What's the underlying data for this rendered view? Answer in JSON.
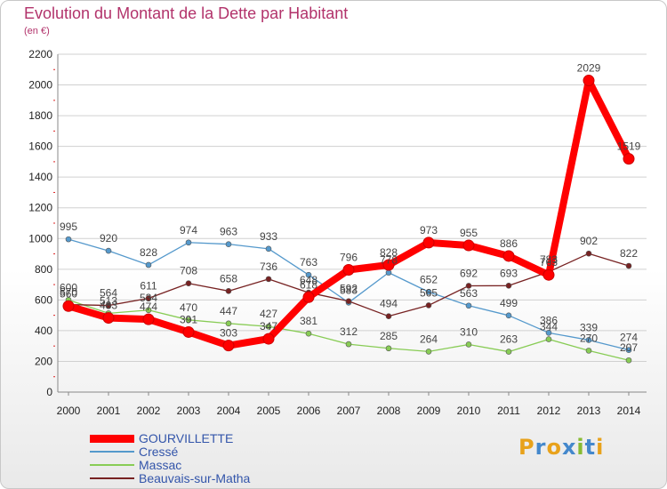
{
  "chart_data": {
    "type": "line",
    "title": "Evolution du Montant de la Dette par Habitant",
    "subtitle": "(en €)",
    "xlabel": "",
    "ylabel": "",
    "x": [
      "2000",
      "2001",
      "2002",
      "2003",
      "2004",
      "2005",
      "2006",
      "2007",
      "2008",
      "2009",
      "2010",
      "2011",
      "2012",
      "2013",
      "2014"
    ],
    "ylim": [
      0,
      2200
    ],
    "yticks": [
      0,
      200,
      400,
      600,
      800,
      1000,
      1200,
      1400,
      1600,
      1800,
      2000,
      2200
    ],
    "grid": true,
    "legend_position": "bottom-left",
    "series": [
      {
        "name": "GOURVILLETTE",
        "color": "#ff0000",
        "values": [
          560,
          483,
          474,
          391,
          303,
          347,
          618,
          796,
          828,
          973,
          955,
          886,
          763,
          2029,
          1519
        ],
        "labels": [
          "560",
          "483",
          "474",
          "391",
          "303",
          "347",
          "618",
          "796",
          "828",
          "973",
          "955",
          "886",
          "763",
          "2029",
          "1519"
        ]
      },
      {
        "name": "Cressé",
        "color": "#5599cc",
        "values": [
          995,
          920,
          828,
          974,
          963,
          933,
          763,
          583,
          778,
          652,
          563,
          499,
          386,
          339,
          274
        ],
        "labels": [
          "995",
          "920",
          "828",
          "974",
          "963",
          "933",
          "763",
          "583",
          "778",
          "652",
          "563",
          "499",
          "386",
          "339",
          "274"
        ]
      },
      {
        "name": "Massac",
        "color": "#88cc55",
        "values": [
          600,
          513,
          534,
          470,
          447,
          427,
          381,
          312,
          285,
          264,
          310,
          263,
          344,
          270,
          207
        ],
        "labels": [
          "600",
          "513",
          "534",
          "470",
          "447",
          "427",
          "381",
          "312",
          "285",
          "264",
          "310",
          "263",
          "344",
          "270",
          "207"
        ]
      },
      {
        "name": "Beauvais-sur-Matha",
        "color": "#772222",
        "values": [
          570,
          564,
          611,
          708,
          658,
          736,
          648,
          592,
          494,
          565,
          692,
          693,
          783,
          902,
          822
        ],
        "labels": [
          "570",
          "564",
          "611",
          "708",
          "658",
          "736",
          "648",
          "592",
          "494",
          "565",
          "692",
          "693",
          "783",
          "902",
          "822"
        ]
      }
    ]
  },
  "logo": {
    "letters": [
      "P",
      "r",
      "o",
      "x",
      "i",
      "t",
      "i"
    ],
    "colors": [
      "#e8a21b",
      "#4488cc",
      "#e8a21b",
      "#4488cc",
      "#88bb33",
      "#4488cc",
      "#e8a21b"
    ]
  }
}
